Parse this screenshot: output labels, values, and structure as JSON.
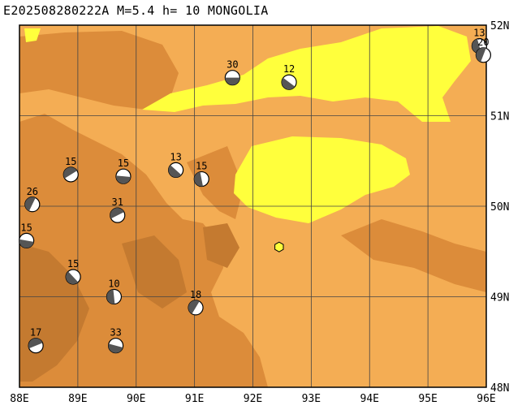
{
  "title": "E202508280222A M=5.4 h= 10 MONGOLIA",
  "colors": {
    "terrain_mid": "#f4ad54",
    "terrain_dark": "#dc8c3a",
    "terrain_darker": "#c47a30",
    "lowland": "#ffff3c",
    "grid": "#444444",
    "frame": "#000000",
    "epicenter": "#ffff3c"
  },
  "map": {
    "lon_min": 88,
    "lon_max": 96,
    "lat_min": 48,
    "lat_max": 52,
    "lon_labels": [
      "88E",
      "89E",
      "90E",
      "91E",
      "92E",
      "93E",
      "94E",
      "95E",
      "96E"
    ],
    "lat_labels": [
      "48N",
      "49N",
      "50N",
      "51N",
      "52N"
    ]
  },
  "epicenter": {
    "lon": 92.45,
    "lat": 49.55
  },
  "events": [
    {
      "lon": 91.65,
      "lat": 51.42,
      "depth": "30"
    },
    {
      "lon": 92.62,
      "lat": 51.37,
      "depth": "12"
    },
    {
      "lon": 95.88,
      "lat": 51.77,
      "depth": "13"
    },
    {
      "lon": 95.95,
      "lat": 51.67,
      "depth": "20"
    },
    {
      "lon": 88.88,
      "lat": 50.35,
      "depth": "15"
    },
    {
      "lon": 89.78,
      "lat": 50.33,
      "depth": "15"
    },
    {
      "lon": 90.68,
      "lat": 50.4,
      "depth": "13"
    },
    {
      "lon": 91.12,
      "lat": 50.3,
      "depth": "15"
    },
    {
      "lon": 88.22,
      "lat": 50.02,
      "depth": "26"
    },
    {
      "lon": 89.68,
      "lat": 49.9,
      "depth": "31"
    },
    {
      "lon": 88.12,
      "lat": 49.62,
      "depth": "15"
    },
    {
      "lon": 88.92,
      "lat": 49.22,
      "depth": "15"
    },
    {
      "lon": 89.62,
      "lat": 49.0,
      "depth": "10"
    },
    {
      "lon": 91.02,
      "lat": 48.88,
      "depth": "18"
    },
    {
      "lon": 88.28,
      "lat": 48.46,
      "depth": "17"
    },
    {
      "lon": 89.65,
      "lat": 48.46,
      "depth": "33"
    }
  ]
}
